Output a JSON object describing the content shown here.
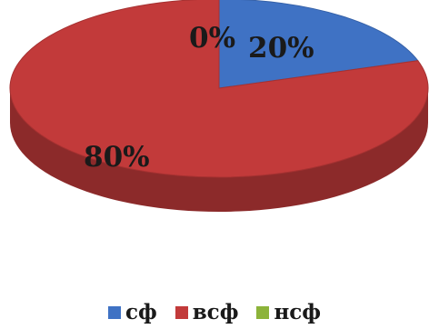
{
  "chart_data": {
    "type": "pie",
    "categories": [
      "сф",
      "всф",
      "нсф"
    ],
    "values": [
      20,
      80,
      0
    ],
    "data_labels": [
      "20%",
      "80%",
      "0%"
    ],
    "colors": [
      "#3f72c4",
      "#c23a3a",
      "#8cb33a"
    ],
    "legend_position": "bottom",
    "style": "3d"
  }
}
